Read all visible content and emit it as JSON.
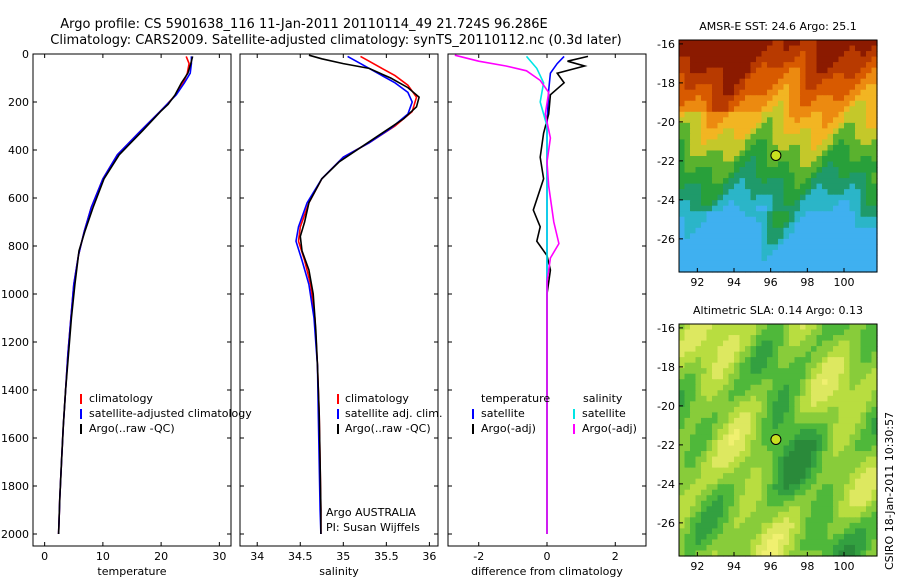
{
  "title_line1": "Argo profile: CS 5901638_116 11-Jan-2011 20110114_49 21.724S 96.286E",
  "title_line2": "Climatology: CARS2009. Satellite-adjusted climatology: synTS_20110112.nc (0.3d later)",
  "footer_vertical": "CSIRO 18-Jan-2011 10:30:57",
  "colors": {
    "climatology": "#ff0000",
    "satellite": "#0000ff",
    "argo": "#000000",
    "sat_salinity": "#00e5e5",
    "argo_adj_salinity": "#ff00ff"
  },
  "chart_data": [
    {
      "type": "line",
      "xlabel": "temperature",
      "ylabel": "",
      "xlim": [
        -2,
        32
      ],
      "ylim": [
        2050,
        0
      ],
      "xticks": [
        0,
        10,
        20,
        30
      ],
      "yticks": [
        0,
        200,
        400,
        600,
        800,
        1000,
        1200,
        1400,
        1600,
        1800,
        2000
      ],
      "legend": [
        "climatology",
        "satellite-adjusted climatology",
        "Argo(..raw -QC)"
      ],
      "series": [
        {
          "name": "climatology",
          "color": "#ff0000",
          "points": [
            [
              24.3,
              10
            ],
            [
              24.8,
              40
            ],
            [
              24.5,
              80
            ],
            [
              23.8,
              120
            ],
            [
              22.5,
              170
            ],
            [
              21,
              210
            ],
            [
              19.8,
              240
            ],
            [
              16.5,
              320
            ],
            [
              12.5,
              420
            ],
            [
              10,
              520
            ],
            [
              8,
              640
            ],
            [
              6.8,
              740
            ],
            [
              5.8,
              840
            ],
            [
              5,
              960
            ],
            [
              4.5,
              1100
            ],
            [
              4,
              1250
            ],
            [
              3.6,
              1400
            ],
            [
              3.2,
              1550
            ],
            [
              2.9,
              1700
            ],
            [
              2.6,
              1850
            ],
            [
              2.4,
              2000
            ]
          ]
        },
        {
          "name": "satellite-adjusted climatology",
          "color": "#0000ff",
          "points": [
            [
              25.2,
              10
            ],
            [
              25.2,
              40
            ],
            [
              25,
              80
            ],
            [
              24,
              120
            ],
            [
              22.6,
              170
            ],
            [
              21,
              210
            ],
            [
              19.8,
              240
            ],
            [
              16.5,
              320
            ],
            [
              12.5,
              420
            ],
            [
              10,
              520
            ],
            [
              8,
              640
            ],
            [
              6.8,
              740
            ],
            [
              5.8,
              840
            ],
            [
              5,
              960
            ],
            [
              4.5,
              1100
            ],
            [
              4,
              1250
            ],
            [
              3.6,
              1400
            ],
            [
              3.2,
              1550
            ],
            [
              2.9,
              1700
            ],
            [
              2.6,
              1850
            ],
            [
              2.4,
              2000
            ]
          ]
        },
        {
          "name": "Argo(..raw -QC)",
          "color": "#000000",
          "points": [
            [
              25.4,
              10
            ],
            [
              25.1,
              40
            ],
            [
              24.6,
              80
            ],
            [
              23.5,
              120
            ],
            [
              22.4,
              170
            ],
            [
              21.2,
              210
            ],
            [
              19.9,
              240
            ],
            [
              16.8,
              320
            ],
            [
              12.8,
              420
            ],
            [
              10.2,
              520
            ],
            [
              8.3,
              640
            ],
            [
              6.9,
              740
            ],
            [
              5.9,
              820
            ],
            [
              5.2,
              960
            ],
            [
              4.6,
              1100
            ],
            [
              4.1,
              1250
            ],
            [
              3.6,
              1400
            ],
            [
              3.2,
              1550
            ],
            [
              2.9,
              1700
            ],
            [
              2.6,
              1850
            ],
            [
              2.4,
              2000
            ]
          ]
        }
      ]
    },
    {
      "type": "line",
      "xlabel": "salinity",
      "ylabel": "",
      "xlim": [
        33.8,
        36.1
      ],
      "ylim": [
        2050,
        0
      ],
      "xticks": [
        34,
        34.5,
        35,
        35.5,
        36
      ],
      "legend": [
        "climatology",
        "satellite adj. clim.",
        "Argo(..raw -QC)"
      ],
      "annotation": [
        "Argo AUSTRALIA",
        "PI: Susan Wijffels"
      ],
      "series": [
        {
          "name": "climatology",
          "color": "#ff0000",
          "points": [
            [
              35.2,
              10
            ],
            [
              35.3,
              30
            ],
            [
              35.45,
              60
            ],
            [
              35.6,
              90
            ],
            [
              35.75,
              130
            ],
            [
              35.85,
              180
            ],
            [
              35.8,
              240
            ],
            [
              35.6,
              300
            ],
            [
              35.3,
              370
            ],
            [
              35.0,
              430
            ],
            [
              34.75,
              520
            ],
            [
              34.6,
              620
            ],
            [
              34.5,
              720
            ],
            [
              34.48,
              780
            ],
            [
              34.55,
              860
            ],
            [
              34.62,
              960
            ],
            [
              34.67,
              1100
            ],
            [
              34.7,
              1300
            ],
            [
              34.72,
              1500
            ],
            [
              34.73,
              1700
            ],
            [
              34.74,
              1900
            ],
            [
              34.74,
              2000
            ]
          ]
        },
        {
          "name": "satellite adj. clim.",
          "color": "#0000ff",
          "points": [
            [
              35.05,
              10
            ],
            [
              35.2,
              40
            ],
            [
              35.4,
              80
            ],
            [
              35.6,
              120
            ],
            [
              35.75,
              160
            ],
            [
              35.8,
              200
            ],
            [
              35.75,
              250
            ],
            [
              35.55,
              310
            ],
            [
              35.3,
              370
            ],
            [
              35.0,
              430
            ],
            [
              34.75,
              520
            ],
            [
              34.58,
              620
            ],
            [
              34.48,
              720
            ],
            [
              34.45,
              780
            ],
            [
              34.52,
              860
            ],
            [
              34.6,
              960
            ],
            [
              34.66,
              1100
            ],
            [
              34.7,
              1300
            ],
            [
              34.71,
              1500
            ],
            [
              34.72,
              1700
            ],
            [
              34.73,
              1900
            ],
            [
              34.74,
              2000
            ]
          ]
        },
        {
          "name": "Argo(..raw -QC)",
          "color": "#000000",
          "points": [
            [
              34.6,
              5
            ],
            [
              34.75,
              20
            ],
            [
              35.0,
              40
            ],
            [
              35.3,
              60
            ],
            [
              35.55,
              100
            ],
            [
              35.75,
              140
            ],
            [
              35.88,
              180
            ],
            [
              35.85,
              220
            ],
            [
              35.7,
              270
            ],
            [
              35.45,
              330
            ],
            [
              35.2,
              390
            ],
            [
              34.95,
              450
            ],
            [
              34.75,
              520
            ],
            [
              34.6,
              620
            ],
            [
              34.55,
              700
            ],
            [
              34.5,
              760
            ],
            [
              34.52,
              820
            ],
            [
              34.6,
              900
            ],
            [
              34.65,
              1000
            ],
            [
              34.68,
              1150
            ],
            [
              34.7,
              1300
            ],
            [
              34.72,
              1500
            ],
            [
              34.73,
              1700
            ],
            [
              34.74,
              1900
            ],
            [
              34.74,
              2000
            ]
          ]
        }
      ]
    },
    {
      "type": "line",
      "xlabel": "difference from climatology",
      "ylabel": "",
      "xlim": [
        -2.9,
        2.9
      ],
      "ylim": [
        2050,
        0
      ],
      "xticks": [
        -2,
        0,
        2
      ],
      "legend_headers": [
        "temperature",
        "salinity"
      ],
      "legend": [
        "satellite",
        "Argo(-adj)",
        "satellite",
        "Argo(-adj)"
      ],
      "series": [
        {
          "name": "satellite",
          "group": "temperature",
          "color": "#0000ff",
          "points": [
            [
              0.5,
              10
            ],
            [
              0.3,
              40
            ],
            [
              0.1,
              80
            ],
            [
              0.05,
              150
            ],
            [
              0,
              300
            ],
            [
              0,
              600
            ],
            [
              0,
              900
            ],
            [
              0,
              1200
            ],
            [
              0,
              1600
            ],
            [
              0,
              2000
            ]
          ]
        },
        {
          "name": "Argo(-adj)",
          "group": "temperature",
          "color": "#000000",
          "points": [
            [
              1.2,
              10
            ],
            [
              0.6,
              30
            ],
            [
              1.1,
              50
            ],
            [
              0.3,
              80
            ],
            [
              0.5,
              120
            ],
            [
              0.1,
              170
            ],
            [
              0.05,
              250
            ],
            [
              -0.1,
              330
            ],
            [
              -0.2,
              430
            ],
            [
              -0.1,
              520
            ],
            [
              -0.4,
              650
            ],
            [
              -0.2,
              720
            ],
            [
              -0.3,
              780
            ],
            [
              0.0,
              840
            ],
            [
              0.1,
              900
            ],
            [
              0.0,
              1000
            ],
            [
              0.0,
              1300
            ],
            [
              0.0,
              1600
            ],
            [
              0.0,
              2000
            ]
          ]
        },
        {
          "name": "satellite",
          "group": "salinity",
          "color": "#00e5e5",
          "points": [
            [
              -0.6,
              10
            ],
            [
              -0.3,
              60
            ],
            [
              -0.1,
              120
            ],
            [
              -0.2,
              200
            ],
            [
              0,
              300
            ],
            [
              0,
              700
            ],
            [
              0,
              1200
            ],
            [
              0,
              1700
            ],
            [
              0,
              2000
            ]
          ]
        },
        {
          "name": "Argo(-adj)",
          "group": "salinity",
          "color": "#ff00ff",
          "points": [
            [
              -2.7,
              5
            ],
            [
              -2.0,
              30
            ],
            [
              -1.2,
              50
            ],
            [
              -0.6,
              70
            ],
            [
              -0.2,
              110
            ],
            [
              0.05,
              160
            ],
            [
              -0.05,
              250
            ],
            [
              0.1,
              350
            ],
            [
              0.0,
              450
            ],
            [
              0.05,
              550
            ],
            [
              0.2,
              700
            ],
            [
              0.35,
              790
            ],
            [
              0.1,
              850
            ],
            [
              0.0,
              950
            ],
            [
              0.0,
              1200
            ],
            [
              0.0,
              1600
            ],
            [
              0.0,
              2000
            ]
          ]
        }
      ]
    },
    {
      "type": "heatmap",
      "title": "AMSR-E SST: 24.6 Argo: 25.1",
      "xlim": [
        91,
        101.8
      ],
      "ylim": [
        -27.7,
        -15.8
      ],
      "xticks": [
        92,
        94,
        96,
        98,
        100
      ],
      "yticks": [
        -16,
        -18,
        -20,
        -22,
        -24,
        -26
      ],
      "marker": {
        "lon": 96.286,
        "lat": -21.724
      }
    },
    {
      "type": "heatmap",
      "title": "Altimetric SLA: 0.14 Argo: 0.13",
      "xlim": [
        91,
        101.8
      ],
      "ylim": [
        -27.7,
        -15.8
      ],
      "xticks": [
        92,
        94,
        96,
        98,
        100
      ],
      "yticks": [
        -16,
        -18,
        -20,
        -22,
        -24,
        -26
      ],
      "marker": {
        "lon": 96.286,
        "lat": -21.724
      }
    }
  ]
}
